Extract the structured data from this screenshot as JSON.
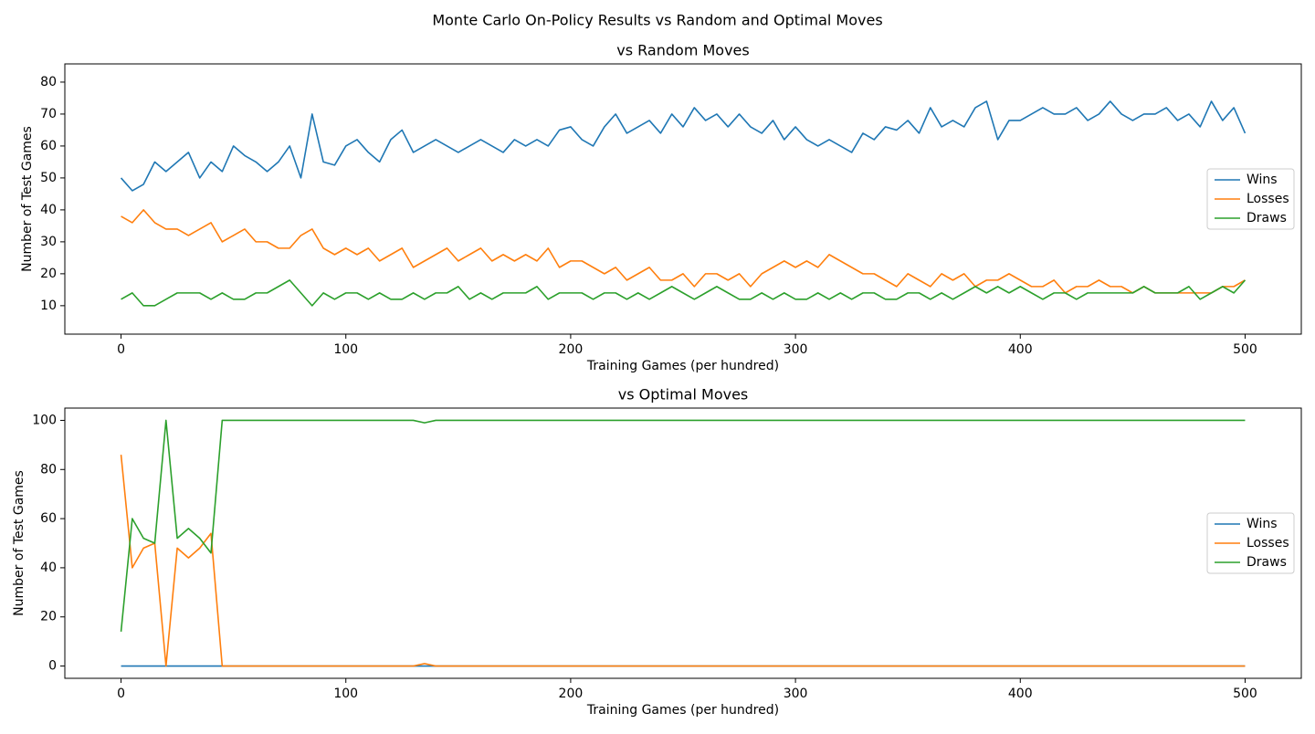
{
  "title": "Monte Carlo On-Policy Results vs Random and Optimal Moves",
  "chart_data": [
    {
      "type": "line",
      "title": "vs Random Moves",
      "x_label": "Training Games (per hundred)",
      "y_label": "Number of Test Games",
      "x": [
        0,
        5,
        10,
        15,
        20,
        25,
        30,
        35,
        40,
        45,
        50,
        55,
        60,
        65,
        70,
        75,
        80,
        85,
        90,
        95,
        100,
        105,
        110,
        115,
        120,
        125,
        130,
        135,
        140,
        145,
        150,
        155,
        160,
        165,
        170,
        175,
        180,
        185,
        190,
        195,
        200,
        205,
        210,
        215,
        220,
        225,
        230,
        235,
        240,
        245,
        250,
        255,
        260,
        265,
        270,
        275,
        280,
        285,
        290,
        295,
        300,
        305,
        310,
        315,
        320,
        325,
        330,
        335,
        340,
        345,
        350,
        355,
        360,
        365,
        370,
        375,
        380,
        385,
        390,
        395,
        400,
        405,
        410,
        415,
        420,
        425,
        430,
        435,
        440,
        445,
        450,
        455,
        460,
        465,
        470,
        475,
        480,
        485,
        490,
        495,
        500
      ],
      "series": [
        {
          "name": "Wins",
          "color": "#1f77b4",
          "values": [
            50,
            46,
            48,
            55,
            52,
            55,
            58,
            50,
            55,
            52,
            60,
            57,
            55,
            52,
            55,
            60,
            50,
            70,
            55,
            54,
            60,
            62,
            58,
            55,
            62,
            65,
            58,
            60,
            62,
            60,
            58,
            60,
            62,
            60,
            58,
            62,
            60,
            62,
            60,
            65,
            66,
            62,
            60,
            66,
            70,
            64,
            66,
            68,
            64,
            70,
            66,
            72,
            68,
            70,
            66,
            70,
            66,
            64,
            68,
            62,
            66,
            62,
            60,
            62,
            60,
            58,
            64,
            62,
            66,
            65,
            68,
            64,
            72,
            66,
            68,
            66,
            72,
            74,
            62,
            68,
            68,
            70,
            72,
            70,
            70,
            72,
            68,
            70,
            74,
            70,
            68,
            70,
            70,
            72,
            68,
            70,
            66,
            74,
            68,
            72,
            64
          ]
        },
        {
          "name": "Losses",
          "color": "#ff7f0e",
          "values": [
            38,
            36,
            40,
            36,
            34,
            34,
            32,
            34,
            36,
            30,
            32,
            34,
            30,
            30,
            28,
            28,
            32,
            34,
            28,
            26,
            28,
            26,
            28,
            24,
            26,
            28,
            22,
            24,
            26,
            28,
            24,
            26,
            28,
            24,
            26,
            24,
            26,
            24,
            28,
            22,
            24,
            24,
            22,
            20,
            22,
            18,
            20,
            22,
            18,
            18,
            20,
            16,
            20,
            20,
            18,
            20,
            16,
            20,
            22,
            24,
            22,
            24,
            22,
            26,
            24,
            22,
            20,
            20,
            18,
            16,
            20,
            18,
            16,
            20,
            18,
            20,
            16,
            18,
            18,
            20,
            18,
            16,
            16,
            18,
            14,
            16,
            16,
            18,
            16,
            16,
            14,
            16,
            14,
            14,
            14,
            14,
            14,
            14,
            16,
            16,
            18
          ]
        },
        {
          "name": "Draws",
          "color": "#2ca02c",
          "values": [
            12,
            14,
            10,
            10,
            12,
            14,
            14,
            14,
            12,
            14,
            12,
            12,
            14,
            14,
            16,
            18,
            14,
            10,
            14,
            12,
            14,
            14,
            12,
            14,
            12,
            12,
            14,
            12,
            14,
            14,
            16,
            12,
            14,
            12,
            14,
            14,
            14,
            16,
            12,
            14,
            14,
            14,
            12,
            14,
            14,
            12,
            14,
            12,
            14,
            16,
            14,
            12,
            14,
            16,
            14,
            12,
            12,
            14,
            12,
            14,
            12,
            12,
            14,
            12,
            14,
            12,
            14,
            14,
            12,
            12,
            14,
            14,
            12,
            14,
            12,
            14,
            16,
            14,
            16,
            14,
            16,
            14,
            12,
            14,
            14,
            12,
            14,
            14,
            14,
            14,
            14,
            16,
            14,
            14,
            14,
            16,
            12,
            14,
            16,
            14,
            18
          ]
        }
      ],
      "xlim": [
        -25,
        525
      ],
      "ylim": [
        1.1,
        85.7
      ],
      "xticks": [
        0,
        100,
        200,
        300,
        400,
        500
      ],
      "yticks": [
        10,
        20,
        30,
        40,
        50,
        60,
        70,
        80
      ],
      "legend": "center right"
    },
    {
      "type": "line",
      "title": "vs Optimal Moves",
      "x_label": "Training Games (per hundred)",
      "y_label": "Number of Test Games",
      "x": [
        0,
        5,
        10,
        15,
        20,
        25,
        30,
        35,
        40,
        45,
        50,
        55,
        60,
        65,
        70,
        75,
        80,
        85,
        90,
        95,
        100,
        105,
        110,
        115,
        120,
        125,
        130,
        135,
        140,
        145,
        150,
        155,
        160,
        165,
        170,
        175,
        180,
        185,
        190,
        195,
        200,
        205,
        210,
        215,
        220,
        225,
        230,
        235,
        240,
        245,
        250,
        255,
        260,
        265,
        270,
        275,
        280,
        285,
        290,
        295,
        300,
        305,
        310,
        315,
        320,
        325,
        330,
        335,
        340,
        345,
        350,
        355,
        360,
        365,
        370,
        375,
        380,
        385,
        390,
        395,
        400,
        405,
        410,
        415,
        420,
        425,
        430,
        435,
        440,
        445,
        450,
        455,
        460,
        465,
        470,
        475,
        480,
        485,
        490,
        495,
        500
      ],
      "series": [
        {
          "name": "Wins",
          "color": "#1f77b4",
          "values": [
            0,
            0,
            0,
            0,
            0,
            0,
            0,
            0,
            0,
            0,
            0,
            0,
            0,
            0,
            0,
            0,
            0,
            0,
            0,
            0,
            0,
            0,
            0,
            0,
            0,
            0,
            0,
            0,
            0,
            0,
            0,
            0,
            0,
            0,
            0,
            0,
            0,
            0,
            0,
            0,
            0,
            0,
            0,
            0,
            0,
            0,
            0,
            0,
            0,
            0,
            0,
            0,
            0,
            0,
            0,
            0,
            0,
            0,
            0,
            0,
            0,
            0,
            0,
            0,
            0,
            0,
            0,
            0,
            0,
            0,
            0,
            0,
            0,
            0,
            0,
            0,
            0,
            0,
            0,
            0,
            0,
            0,
            0,
            0,
            0,
            0,
            0,
            0,
            0,
            0,
            0,
            0,
            0,
            0,
            0,
            0,
            0,
            0,
            0,
            0,
            0
          ]
        },
        {
          "name": "Losses",
          "color": "#ff7f0e",
          "values": [
            86,
            40,
            48,
            50,
            0,
            48,
            44,
            48,
            54,
            0,
            0,
            0,
            0,
            0,
            0,
            0,
            0,
            0,
            0,
            0,
            0,
            0,
            0,
            0,
            0,
            0,
            0,
            1,
            0,
            0,
            0,
            0,
            0,
            0,
            0,
            0,
            0,
            0,
            0,
            0,
            0,
            0,
            0,
            0,
            0,
            0,
            0,
            0,
            0,
            0,
            0,
            0,
            0,
            0,
            0,
            0,
            0,
            0,
            0,
            0,
            0,
            0,
            0,
            0,
            0,
            0,
            0,
            0,
            0,
            0,
            0,
            0,
            0,
            0,
            0,
            0,
            0,
            0,
            0,
            0,
            0,
            0,
            0,
            0,
            0,
            0,
            0,
            0,
            0,
            0,
            0,
            0,
            0,
            0,
            0,
            0,
            0,
            0,
            0,
            0,
            0
          ]
        },
        {
          "name": "Draws",
          "color": "#2ca02c",
          "values": [
            14,
            60,
            52,
            50,
            100,
            52,
            56,
            52,
            46,
            100,
            100,
            100,
            100,
            100,
            100,
            100,
            100,
            100,
            100,
            100,
            100,
            100,
            100,
            100,
            100,
            100,
            100,
            99,
            100,
            100,
            100,
            100,
            100,
            100,
            100,
            100,
            100,
            100,
            100,
            100,
            100,
            100,
            100,
            100,
            100,
            100,
            100,
            100,
            100,
            100,
            100,
            100,
            100,
            100,
            100,
            100,
            100,
            100,
            100,
            100,
            100,
            100,
            100,
            100,
            100,
            100,
            100,
            100,
            100,
            100,
            100,
            100,
            100,
            100,
            100,
            100,
            100,
            100,
            100,
            100,
            100,
            100,
            100,
            100,
            100,
            100,
            100,
            100,
            100,
            100,
            100,
            100,
            100,
            100,
            100,
            100,
            100,
            100,
            100,
            100,
            100
          ]
        }
      ],
      "xlim": [
        -25,
        525
      ],
      "ylim": [
        -5,
        105
      ],
      "xticks": [
        0,
        100,
        200,
        300,
        400,
        500
      ],
      "yticks": [
        0,
        20,
        40,
        60,
        80,
        100
      ],
      "legend": "center right"
    }
  ]
}
